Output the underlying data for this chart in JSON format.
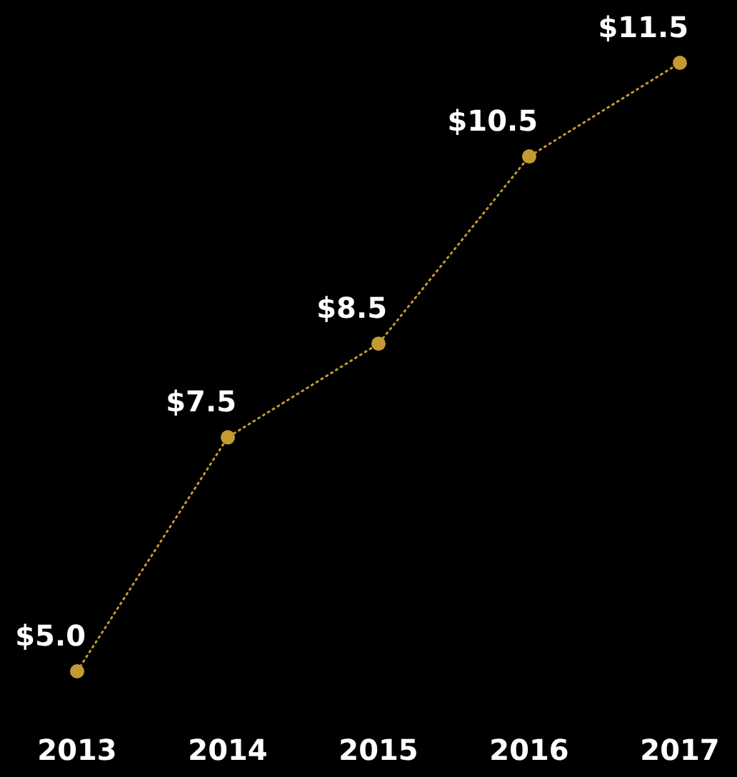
{
  "chart_data": {
    "type": "line",
    "categories": [
      "2013",
      "2014",
      "2015",
      "2016",
      "2017"
    ],
    "series": [
      {
        "color": "#c49a32",
        "values": [
          5.0,
          7.5,
          8.5,
          10.5,
          11.5
        ],
        "value_labels": [
          "$5.0",
          "$7.5",
          "$8.5",
          "$10.5",
          "$11.5"
        ]
      }
    ],
    "marker": "circle",
    "line_style": "dotted",
    "tick_labels": "x"
  }
}
